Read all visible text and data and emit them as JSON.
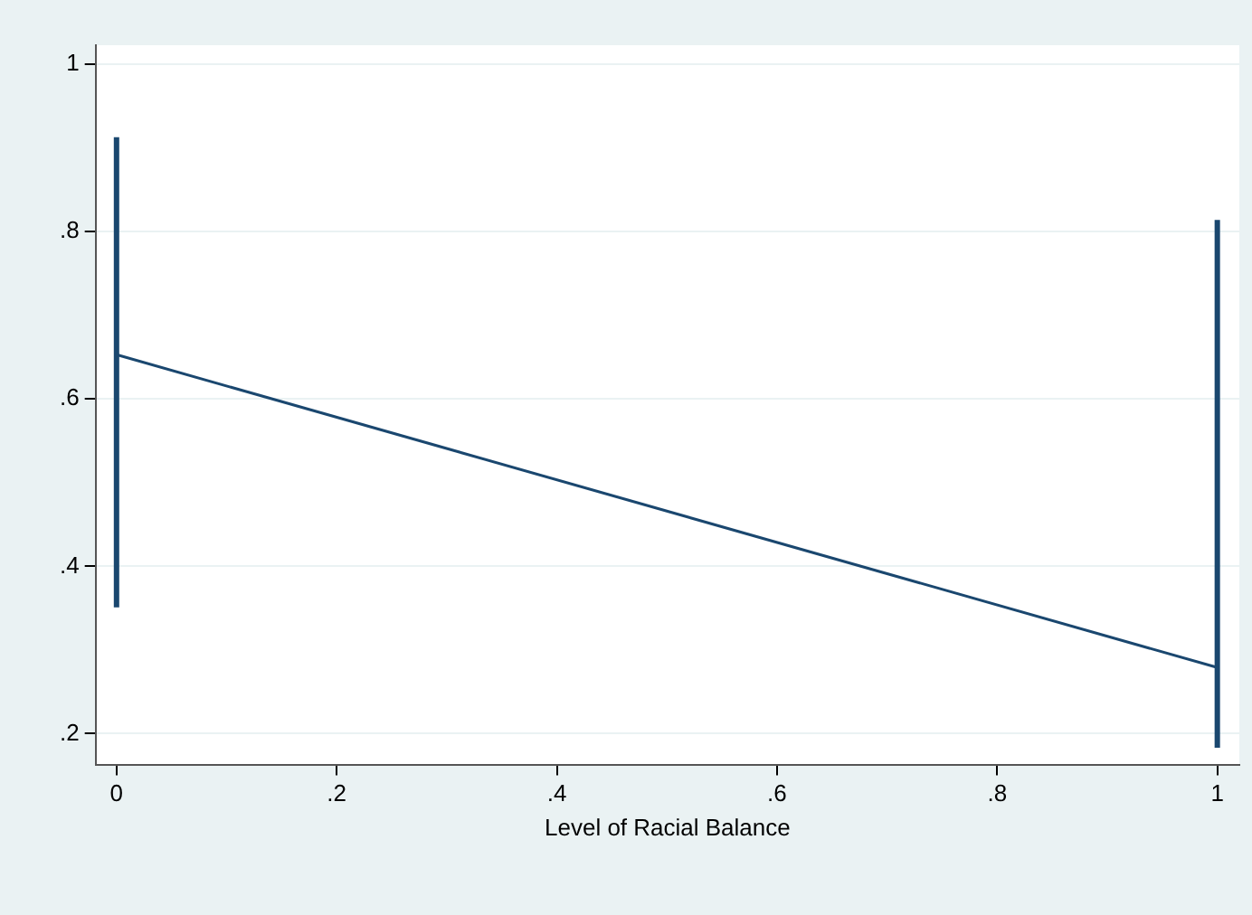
{
  "chart_data": {
    "type": "line",
    "xlabel": "Level of Racial Balance",
    "x": [
      0,
      1
    ],
    "series": [
      {
        "color": "#1a476f",
        "values": [
          0.653,
          0.279
        ],
        "errors": [
          [
            0.351,
            0.913
          ],
          [
            0.183,
            0.814
          ]
        ]
      }
    ],
    "xlim": [
      -0.019,
      1.02
    ],
    "xticks": [
      0,
      {
        "value": 0.2,
        "label": ".2"
      },
      {
        "value": 0.4,
        "label": ".4"
      },
      {
        "value": 0.6,
        "label": ".6"
      },
      {
        "value": 0.8,
        "label": ".8"
      },
      1
    ],
    "ylim": [
      0.163,
      1.023
    ],
    "yticks": [
      {
        "value": 0.2,
        "label": ".2"
      },
      {
        "value": 0.4,
        "label": ".4"
      },
      {
        "value": 0.6,
        "label": ".6"
      },
      {
        "value": 0.8,
        "label": ".8"
      },
      1
    ],
    "grid": "y",
    "legend": false,
    "marker": "none",
    "line_style": "solid"
  }
}
